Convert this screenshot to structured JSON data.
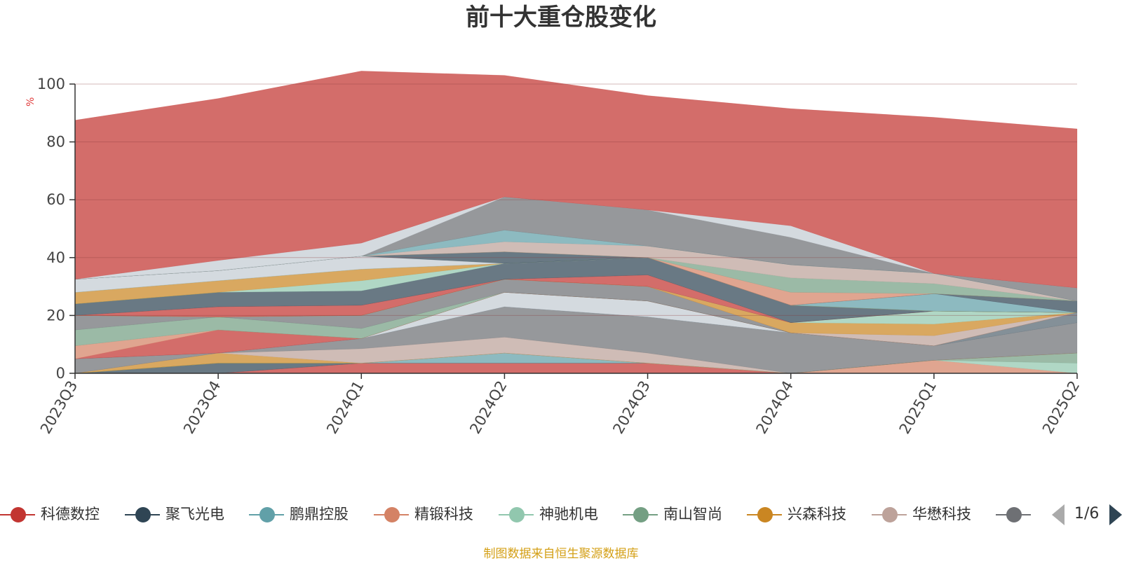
{
  "title": "前十大重仓股变化",
  "ylabel": "%",
  "source": "制图数据来自恒生聚源数据库",
  "pager": "1/6",
  "chart_data": {
    "type": "area",
    "stacked": true,
    "title": "前十大重仓股变化",
    "ylabel": "%",
    "ylim": [
      0,
      100
    ],
    "yticks": [
      0,
      20,
      40,
      60,
      80,
      100
    ],
    "grid": true,
    "legend_position": "bottom",
    "categories": [
      "2023Q3",
      "2023Q4",
      "2024Q1",
      "2024Q2",
      "2024Q3",
      "2024Q4",
      "2025Q1",
      "2025Q2"
    ],
    "series": [
      {
        "name": "科德数控",
        "color": "#c23531",
        "values": [
          0,
          0,
          3.5,
          3.5,
          3.5,
          0,
          0,
          0
        ]
      },
      {
        "name": "聚飞光电",
        "color": "#2f4554",
        "values": [
          0,
          3.5,
          0,
          0,
          0,
          0,
          0,
          0
        ]
      },
      {
        "name": "鹏鼎控股",
        "color": "#61a0a8",
        "values": [
          0,
          0,
          0,
          3.5,
          0,
          0,
          0,
          0
        ]
      },
      {
        "name": "精锻科技",
        "color": "#d48265",
        "values": [
          0,
          0,
          0,
          0,
          0,
          0,
          4.5,
          0
        ]
      },
      {
        "name": "神驰机电",
        "color": "#91c7ae",
        "values": [
          0,
          0,
          0,
          0,
          0,
          0,
          0,
          3.5
        ]
      },
      {
        "name": "南山智尚",
        "color": "#749f83",
        "values": [
          0,
          0,
          0,
          0,
          0,
          0,
          0,
          3.5
        ]
      },
      {
        "name": "兴森科技",
        "color": "#ca8622",
        "values": [
          0,
          3.5,
          0,
          0,
          0,
          0,
          0,
          0
        ]
      },
      {
        "name": "华懋科技",
        "color": "#bda29a",
        "values": [
          0,
          0,
          5,
          5.5,
          3.5,
          0,
          0,
          0
        ]
      },
      {
        "name": "",
        "color": "#6e7074",
        "values": [
          5,
          0,
          3.5,
          10.5,
          12.5,
          14,
          5,
          10.5
        ]
      },
      {
        "name": "",
        "color": "#546570",
        "values": [
          0,
          0,
          0,
          0,
          0,
          0,
          0,
          3.5
        ]
      },
      {
        "name": "",
        "color": "#c4ccd3",
        "values": [
          0,
          0,
          0,
          5,
          5.5,
          0,
          0,
          0
        ]
      },
      {
        "name": "",
        "color": "#c23531",
        "values": [
          0,
          8,
          0,
          0,
          0,
          0,
          0,
          0
        ]
      },
      {
        "name": "",
        "color": "#d48265",
        "values": [
          4.5,
          0,
          0,
          0,
          0,
          0,
          0,
          0
        ]
      },
      {
        "name": "",
        "color": "#749f83",
        "values": [
          5.5,
          4.5,
          3.5,
          0,
          0,
          0,
          0,
          0
        ]
      },
      {
        "name": "",
        "color": "#6e7074",
        "values": [
          5,
          0,
          4.5,
          4.5,
          5,
          0,
          0,
          0
        ]
      },
      {
        "name": "",
        "color": "#bda29a",
        "values": [
          0,
          0,
          0,
          0,
          0,
          0,
          3.5,
          0
        ]
      },
      {
        "name": "",
        "color": "#ca8622",
        "values": [
          0,
          0,
          0,
          0,
          0,
          3.5,
          4,
          0
        ]
      },
      {
        "name": "",
        "color": "#91c7ae",
        "values": [
          0,
          0,
          0,
          0,
          0,
          0,
          4.5,
          0
        ]
      },
      {
        "name": "",
        "color": "#c23531",
        "values": [
          0,
          3.5,
          3.5,
          0,
          4,
          0,
          0,
          0
        ]
      },
      {
        "name": "",
        "color": "#2f4554",
        "values": [
          4,
          5,
          5,
          5.5,
          6,
          6,
          0,
          0
        ]
      },
      {
        "name": "",
        "color": "#91c7ae",
        "values": [
          0,
          0,
          3.5,
          0,
          0,
          0,
          0,
          0
        ]
      },
      {
        "name": "",
        "color": "#ca8622",
        "values": [
          4,
          4,
          4,
          0,
          0,
          0,
          0,
          0
        ]
      },
      {
        "name": "",
        "color": "#61a0a8",
        "values": [
          0,
          0,
          0,
          0,
          0,
          0,
          6,
          0
        ]
      },
      {
        "name": "",
        "color": "#c4ccd3",
        "values": [
          4.5,
          3.5,
          4.5,
          0,
          0,
          0,
          0,
          0
        ]
      },
      {
        "name": "",
        "color": "#2f4554",
        "values": [
          0,
          0,
          0,
          4,
          0,
          0,
          0,
          4
        ]
      },
      {
        "name": "",
        "color": "#d48265",
        "values": [
          0,
          0,
          0,
          0,
          0,
          4.5,
          0,
          0
        ]
      },
      {
        "name": "",
        "color": "#749f83",
        "values": [
          0,
          0,
          0,
          0,
          0,
          5,
          3.5,
          0
        ]
      },
      {
        "name": "",
        "color": "#bda29a",
        "values": [
          0,
          0,
          0,
          3.5,
          4,
          4.5,
          3.5,
          0
        ]
      },
      {
        "name": "",
        "color": "#61a0a8",
        "values": [
          0,
          0,
          0,
          4,
          0,
          0,
          0,
          0
        ]
      },
      {
        "name": "",
        "color": "#6e7074",
        "values": [
          0,
          0,
          0,
          11.5,
          12.5,
          9.5,
          0,
          4.5
        ]
      },
      {
        "name": "",
        "color": "#c4ccd3",
        "values": [
          0,
          3.5,
          4.5,
          0,
          0,
          4,
          0,
          0
        ]
      },
      {
        "name": "",
        "color": "#c23531",
        "values": [
          55,
          56,
          59.5,
          42,
          39.5,
          40.5,
          54,
          55
        ]
      }
    ]
  },
  "legend": [
    {
      "name": "科德数控",
      "color": "#c23531"
    },
    {
      "name": "聚飞光电",
      "color": "#2f4554"
    },
    {
      "name": "鹏鼎控股",
      "color": "#61a0a8"
    },
    {
      "name": "精锻科技",
      "color": "#d48265"
    },
    {
      "name": "神驰机电",
      "color": "#91c7ae"
    },
    {
      "name": "南山智尚",
      "color": "#749f83"
    },
    {
      "name": "兴森科技",
      "color": "#ca8622"
    },
    {
      "name": "华懋科技",
      "color": "#bda29a"
    },
    {
      "name": "",
      "color": "#6e7074"
    }
  ]
}
